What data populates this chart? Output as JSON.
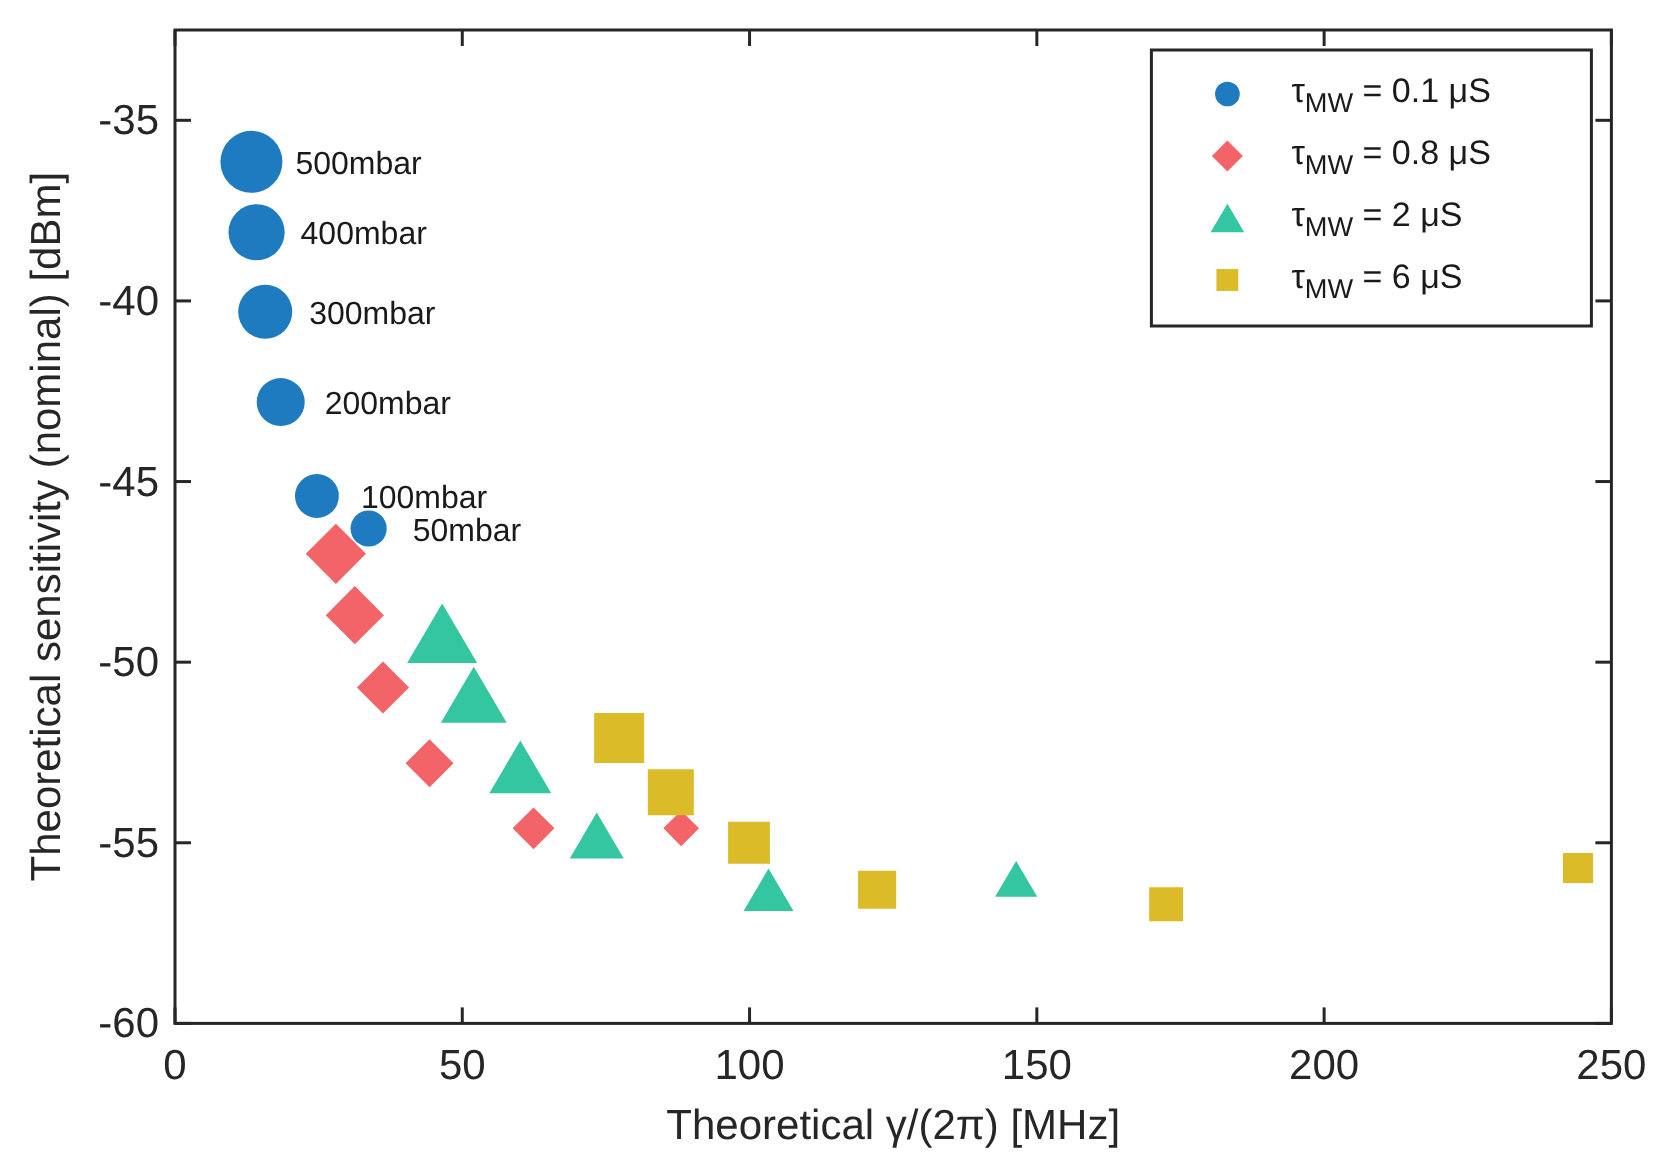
{
  "chart_data": {
    "type": "bubble",
    "xlabel": "Theoretical γ/(2π) [MHz]",
    "ylabel": "Theoretical sensitivity (nominal) [dBm]",
    "xlim": [
      0,
      250
    ],
    "xticks": [
      0,
      50,
      100,
      150,
      200,
      250
    ],
    "ylim": [
      -60,
      -32.5
    ],
    "yticks": [
      -60,
      -55,
      -50,
      -45,
      -40,
      -35
    ],
    "grid": false,
    "legend": "top right",
    "series": [
      {
        "name": "τ$_{MW}$ = 0.1 μS",
        "color": "#1f7bbf",
        "marker": "circle",
        "x": [
          13.3,
          14.2,
          15.7,
          18.4,
          24.7,
          33.7
        ],
        "values": [
          -36.15,
          -38.1,
          -40.3,
          -42.8,
          -45.4,
          -46.3
        ],
        "sizes": [
          1,
          0.82,
          0.76,
          0.6,
          0.5,
          0.34
        ]
      },
      {
        "name": "τ$_{MW}$ = 0.8 μS",
        "color": "#f26468",
        "marker": "diamond",
        "x": [
          28.0,
          31.3,
          36.2,
          44.3,
          62.4,
          88.1
        ],
        "values": [
          -47.0,
          -48.7,
          -50.7,
          -52.8,
          -54.6,
          -54.6
        ],
        "sizes": [
          0.6,
          0.56,
          0.45,
          0.38,
          0.29,
          0.21
        ]
      },
      {
        "name": "τ$_{MW}$ = 2 μS",
        "color": "#33c6a0",
        "marker": "triangle",
        "x": [
          46.5,
          52.0,
          60.1,
          73.4,
          103.3,
          146.4
        ],
        "values": [
          -49.2,
          -50.9,
          -52.9,
          -54.8,
          -56.3,
          -56.0
        ],
        "sizes": [
          0.69,
          0.61,
          0.54,
          0.41,
          0.35,
          0.25
        ]
      },
      {
        "name": "τ$_{MW}$ = 6 μS",
        "color": "#dcbb28",
        "marker": "square",
        "x": [
          77.3,
          86.3,
          99.9,
          122.2,
          172.5,
          244.2
        ],
        "values": [
          -52.1,
          -53.6,
          -55.0,
          -56.3,
          -56.7,
          -55.7
        ],
        "sizes": [
          0.83,
          0.7,
          0.58,
          0.48,
          0.38,
          0.3
        ]
      }
    ],
    "annotations": [
      {
        "text": "500mbar",
        "x": 13.3,
        "y": -36.15
      },
      {
        "text": "400mbar",
        "x": 14.2,
        "y": -38.1
      },
      {
        "text": "300mbar",
        "x": 15.7,
        "y": -40.3
      },
      {
        "text": "200mbar",
        "x": 18.4,
        "y": -42.8
      },
      {
        "text": "100mbar",
        "x": 24.7,
        "y": -45.4
      },
      {
        "text": "50mbar",
        "x": 33.7,
        "y": -46.3
      }
    ]
  }
}
